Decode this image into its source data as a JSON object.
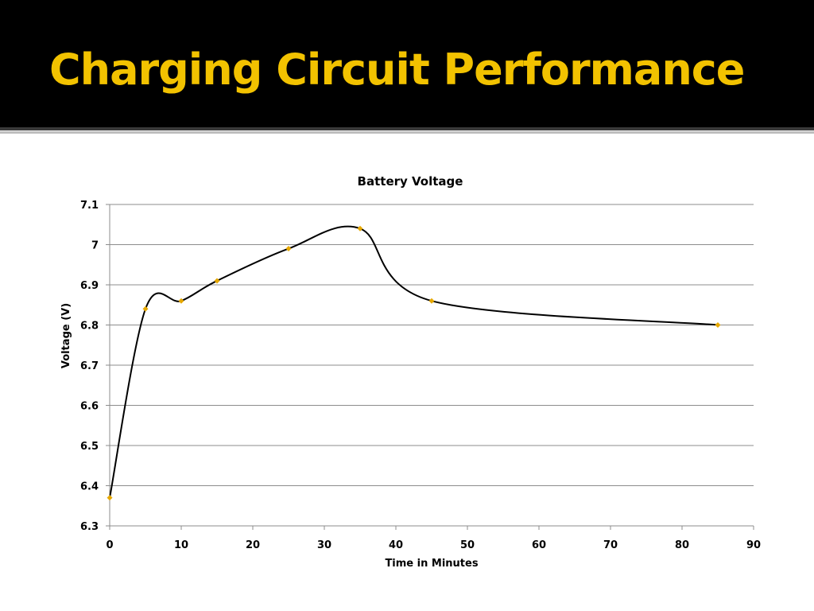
{
  "slide": {
    "title": "Charging Circuit Performance",
    "title_color": "#f2c200",
    "background_color": "#ffffff",
    "header_color": "#000000"
  },
  "chart_data": {
    "type": "line",
    "smooth": true,
    "title": "Battery Voltage",
    "xlabel": "Time in Minutes",
    "ylabel": "Voltage (V)",
    "xlim": [
      0,
      90
    ],
    "ylim": [
      6.3,
      7.1
    ],
    "x_ticks": [
      "0",
      "10",
      "20",
      "30",
      "40",
      "50",
      "60",
      "70",
      "80",
      "90"
    ],
    "y_ticks": [
      "6.3",
      "6.4",
      "6.5",
      "6.6",
      "6.7",
      "6.8",
      "6.9",
      "7",
      "7.1"
    ],
    "grid": "horizontal",
    "legend": "none",
    "line_color": "#000000",
    "marker_color": "#e6a800",
    "series": [
      {
        "x": [
          0,
          5,
          10,
          15,
          25,
          35,
          45,
          85
        ],
        "y": [
          6.37,
          6.84,
          6.86,
          6.91,
          6.99,
          7.04,
          6.86,
          6.8
        ]
      }
    ]
  }
}
